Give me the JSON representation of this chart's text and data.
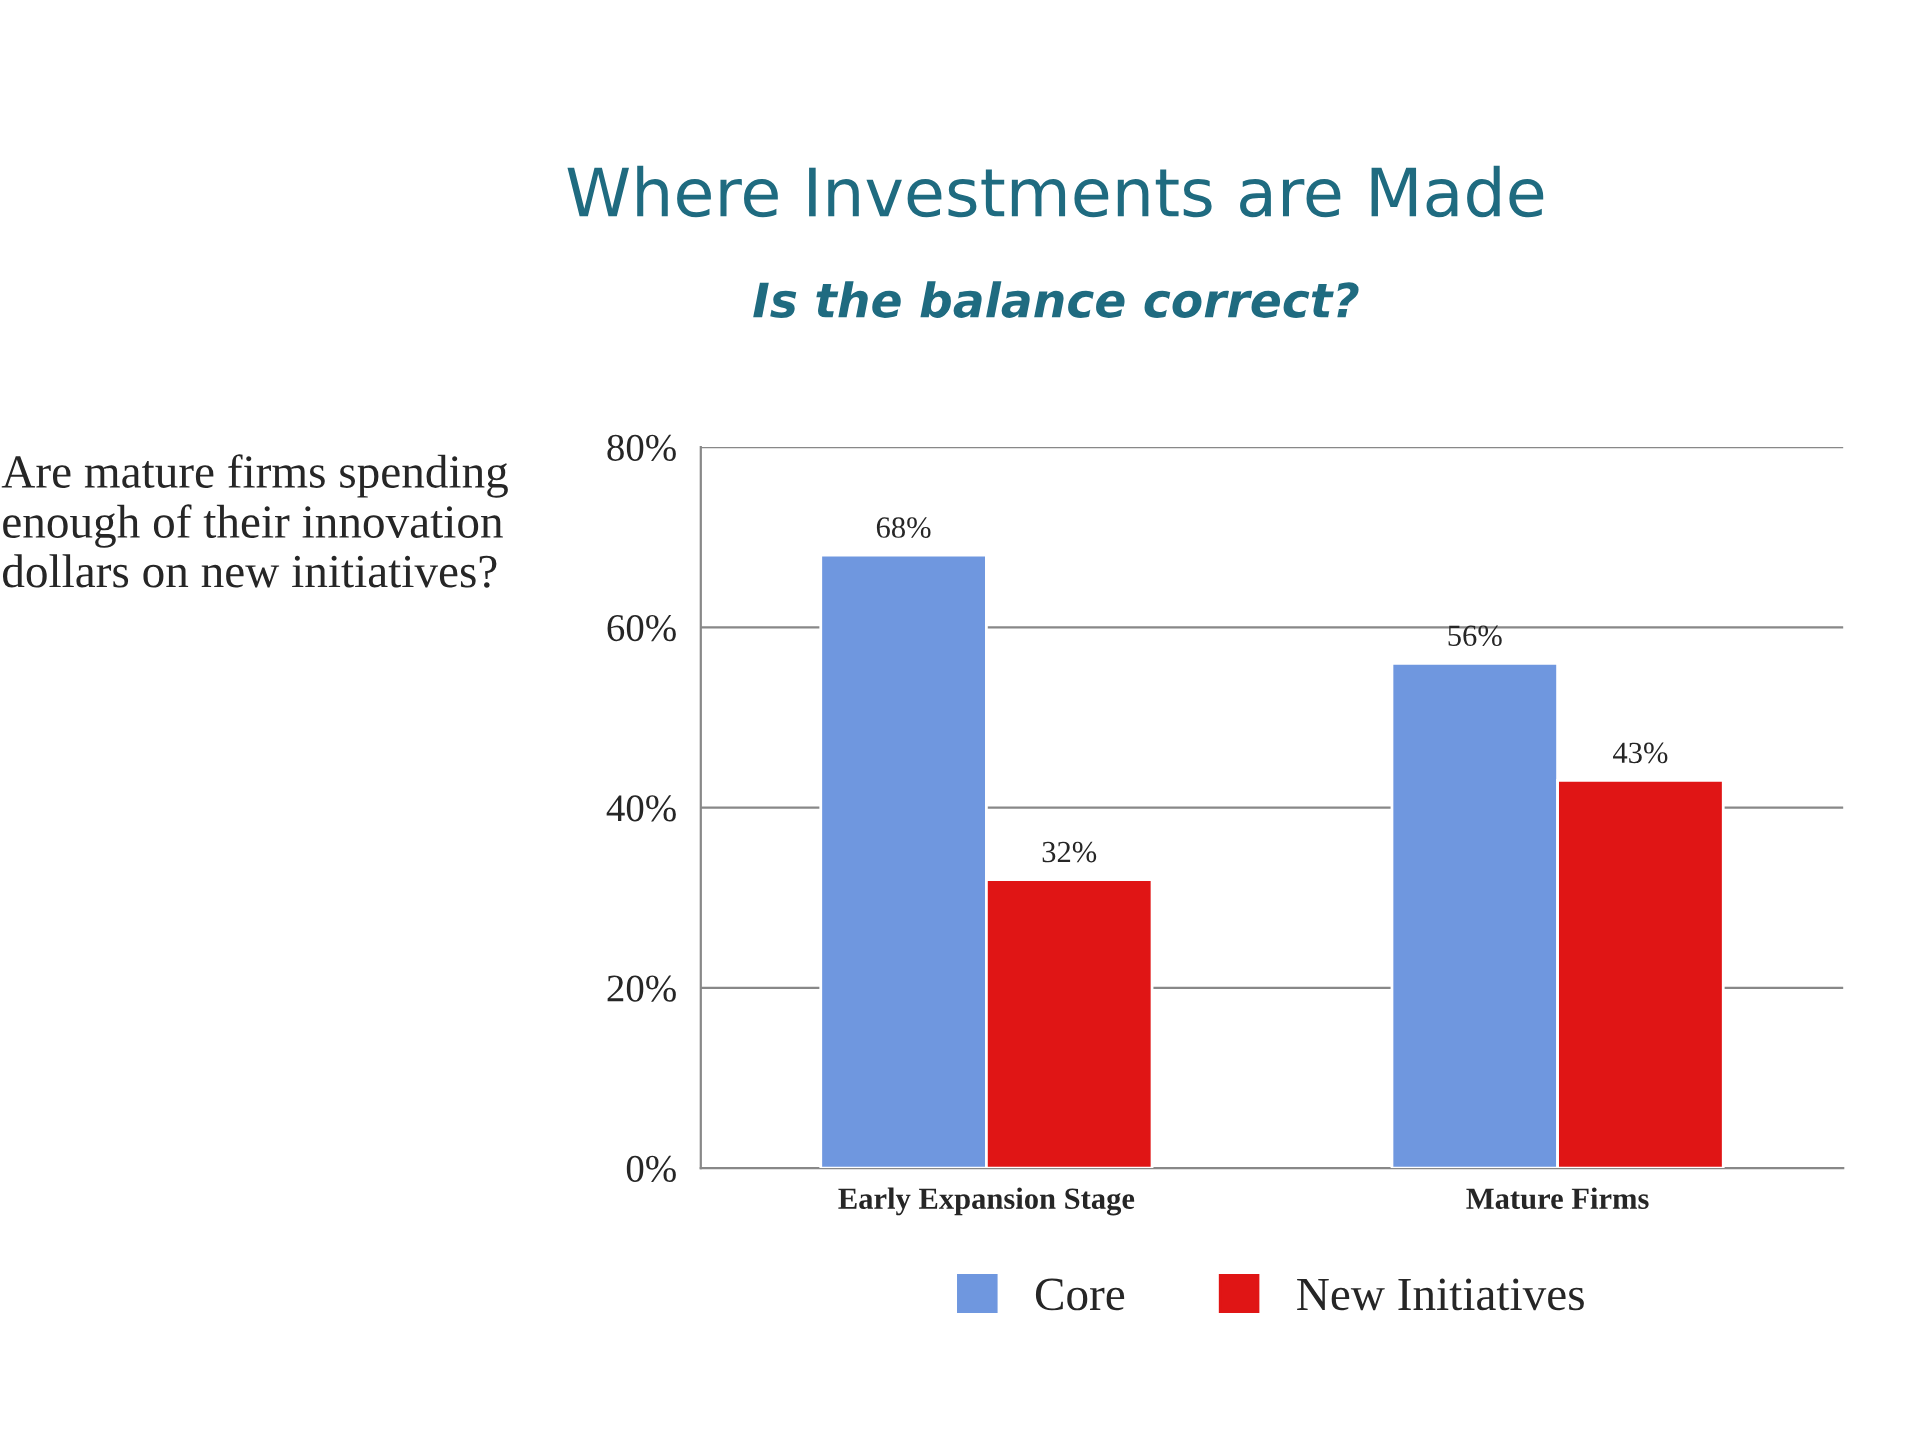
{
  "chart_data": {
    "type": "bar",
    "title": "Where Investments are Made",
    "subtitle": "Is the balance correct?",
    "annotations": [
      "Are mature firms spending enough of their innovation dollars on new initiatives?"
    ],
    "categories": [
      "Early Expansion Stage",
      "Mature Firms"
    ],
    "series": [
      {
        "name": "Core",
        "color": "#6f97df",
        "values": [
          68,
          56
        ],
        "value_labels": [
          "68%",
          "56%"
        ]
      },
      {
        "name": "New Initiatives",
        "color": "#e01515",
        "values": [
          32,
          43
        ],
        "value_labels": [
          "32%",
          "43%"
        ]
      }
    ],
    "ylim": [
      0,
      80
    ],
    "yticks": [
      {
        "value": 0,
        "label": "0%"
      },
      {
        "value": 20,
        "label": "20%"
      },
      {
        "value": 40,
        "label": "40%"
      },
      {
        "value": 60,
        "label": "60%"
      },
      {
        "value": 80,
        "label": "80%"
      }
    ],
    "grid": "y",
    "legend": "bottom"
  }
}
